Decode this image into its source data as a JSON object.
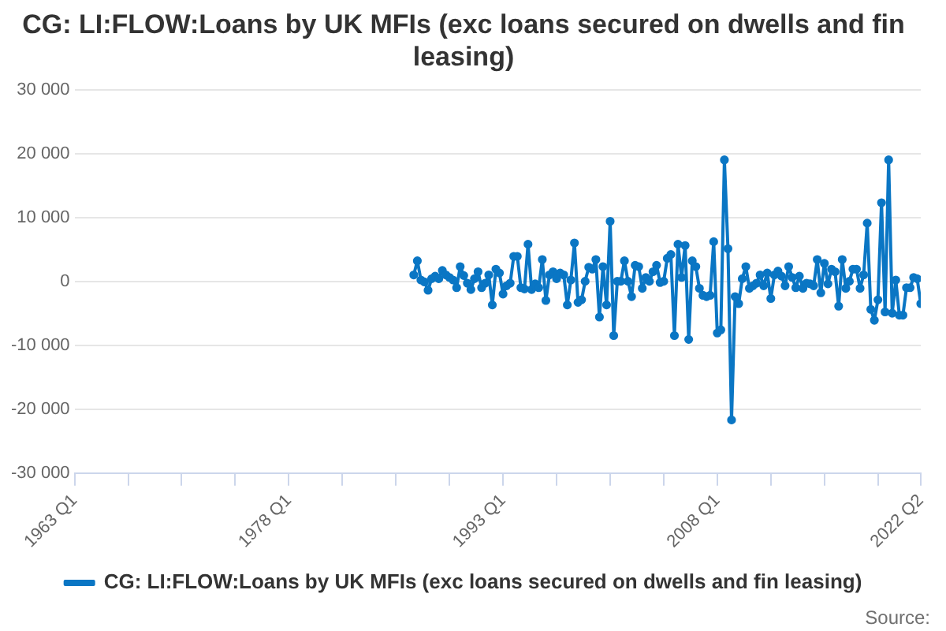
{
  "chart_data": {
    "type": "line",
    "title": "CG: LI:FLOW:Loans by UK MFIs (exc loans secured on dwells and fin leasing)",
    "x": [
      "1986-10",
      "1987-01",
      "1987-04",
      "1987-07",
      "1987-10",
      "1988-01",
      "1988-04",
      "1988-07",
      "1988-10",
      "1989-01",
      "1989-04",
      "1989-07",
      "1989-10",
      "1990-01",
      "1990-04",
      "1990-07",
      "1990-10",
      "1991-01",
      "1991-04",
      "1991-07",
      "1991-10",
      "1992-01",
      "1992-04",
      "1992-07",
      "1992-10",
      "1993-01",
      "1993-04",
      "1993-07",
      "1993-10",
      "1994-01",
      "1994-04",
      "1994-07",
      "1994-10",
      "1995-01",
      "1995-04",
      "1995-07",
      "1995-10",
      "1996-01",
      "1996-04",
      "1996-07",
      "1996-10",
      "1997-01",
      "1997-04",
      "1997-07",
      "1997-10",
      "1998-01",
      "1998-04",
      "1998-07",
      "1998-10",
      "1999-01",
      "1999-04",
      "1999-07",
      "1999-10",
      "2000-01",
      "2000-04",
      "2000-07",
      "2000-10",
      "2001-01",
      "2001-04",
      "2001-07",
      "2001-10",
      "2002-01",
      "2002-04",
      "2002-07",
      "2002-10",
      "2003-01",
      "2003-04",
      "2003-07",
      "2003-10",
      "2004-01",
      "2004-04",
      "2004-07",
      "2004-10",
      "2005-01",
      "2005-04",
      "2005-07",
      "2005-10",
      "2006-01",
      "2006-04",
      "2006-07",
      "2006-10",
      "2007-01",
      "2007-04",
      "2007-07",
      "2007-10",
      "2008-01",
      "2008-04",
      "2008-07",
      "2008-10",
      "2009-01",
      "2009-04",
      "2009-07",
      "2009-10",
      "2010-01",
      "2010-04",
      "2010-07",
      "2010-10",
      "2011-01",
      "2011-04",
      "2011-07",
      "2011-10",
      "2012-01",
      "2012-04",
      "2012-07",
      "2012-10",
      "2013-01",
      "2013-04",
      "2013-07",
      "2013-10",
      "2014-01",
      "2014-04",
      "2014-07",
      "2014-10",
      "2015-01",
      "2015-04",
      "2015-07",
      "2015-10",
      "2016-01",
      "2016-04",
      "2016-07",
      "2016-10",
      "2017-01",
      "2017-04",
      "2017-07",
      "2017-10",
      "2018-01",
      "2018-04",
      "2018-07",
      "2018-10",
      "2019-01",
      "2019-04",
      "2019-07",
      "2019-10",
      "2020-01",
      "2020-04",
      "2020-07",
      "2020-10",
      "2021-01",
      "2021-04",
      "2021-07",
      "2021-10",
      "2022-01",
      "2022-04"
    ],
    "series": [
      {
        "name": "CG: LI:FLOW:Loans by UK MFIs (exc loans secured on dwells and fin leasing)",
        "color": "#0a76c4",
        "values": [
          1000,
          3200,
          200,
          -100,
          -1400,
          400,
          800,
          400,
          1700,
          1000,
          600,
          200,
          -1000,
          2300,
          900,
          -300,
          -1300,
          400,
          1500,
          -1000,
          -300,
          1000,
          -3700,
          1900,
          1300,
          -2000,
          -700,
          -300,
          3900,
          3900,
          -1000,
          -1200,
          5800,
          -1300,
          -400,
          -1000,
          3400,
          -3000,
          1000,
          1500,
          400,
          1300,
          1000,
          -3700,
          200,
          6000,
          -3300,
          -2900,
          0,
          2200,
          1900,
          3400,
          -5600,
          2300,
          -3700,
          9400,
          -8500,
          0,
          0,
          3200,
          0,
          -2400,
          2500,
          2300,
          -1100,
          600,
          0,
          1500,
          2500,
          -200,
          0,
          3600,
          4200,
          -8500,
          5800,
          600,
          5600,
          -9100,
          3200,
          2300,
          -1100,
          -2200,
          -2400,
          -2200,
          6200,
          -8100,
          -7600,
          19000,
          5100,
          -21700,
          -2400,
          -3500,
          400,
          2300,
          -1100,
          -700,
          -300,
          1000,
          -700,
          1300,
          -2700,
          1000,
          1600,
          800,
          -700,
          2300,
          600,
          -1000,
          800,
          -1100,
          -300,
          -400,
          -700,
          3400,
          -1800,
          2800,
          -400,
          1900,
          1500,
          -3900,
          3400,
          -1100,
          0,
          1900,
          1900,
          -1100,
          1000,
          9100,
          -4400,
          -6100,
          -2900,
          12300,
          -4800,
          19000,
          -5000,
          200,
          -5300,
          -5300,
          -1000,
          -1000,
          600,
          400,
          -3500
        ]
      }
    ],
    "xlim": [
      "1963-01",
      "2022-04"
    ],
    "xticks": [
      {
        "value": "1963-01",
        "label": "1963 Q1"
      },
      {
        "value": "1966-10",
        "label": null
      },
      {
        "value": "1970-07",
        "label": null
      },
      {
        "value": "1974-04",
        "label": null
      },
      {
        "value": "1978-01",
        "label": "1978 Q1"
      },
      {
        "value": "1981-10",
        "label": null
      },
      {
        "value": "1985-07",
        "label": null
      },
      {
        "value": "1989-04",
        "label": null
      },
      {
        "value": "1993-01",
        "label": "1993 Q1"
      },
      {
        "value": "1996-10",
        "label": null
      },
      {
        "value": "2000-07",
        "label": null
      },
      {
        "value": "2004-04",
        "label": null
      },
      {
        "value": "2008-01",
        "label": "2008 Q1"
      },
      {
        "value": "2011-10",
        "label": null
      },
      {
        "value": "2015-07",
        "label": null
      },
      {
        "value": "2019-04",
        "label": null
      },
      {
        "value": "2022-04",
        "label": "2022 Q2"
      }
    ],
    "ylim": [
      -30000,
      30000
    ],
    "yticks": [
      {
        "value": -30000,
        "label": "-30 000"
      },
      {
        "value": -20000,
        "label": "-20 000"
      },
      {
        "value": -10000,
        "label": "-10 000"
      },
      {
        "value": 0,
        "label": "0"
      },
      {
        "value": 10000,
        "label": "10 000"
      },
      {
        "value": 20000,
        "label": "20 000"
      },
      {
        "value": 30000,
        "label": "30 000"
      }
    ],
    "grid": "y",
    "legend": "bottom",
    "marker": "circle",
    "line_style": "solid",
    "annotations": [
      "Source:"
    ]
  }
}
